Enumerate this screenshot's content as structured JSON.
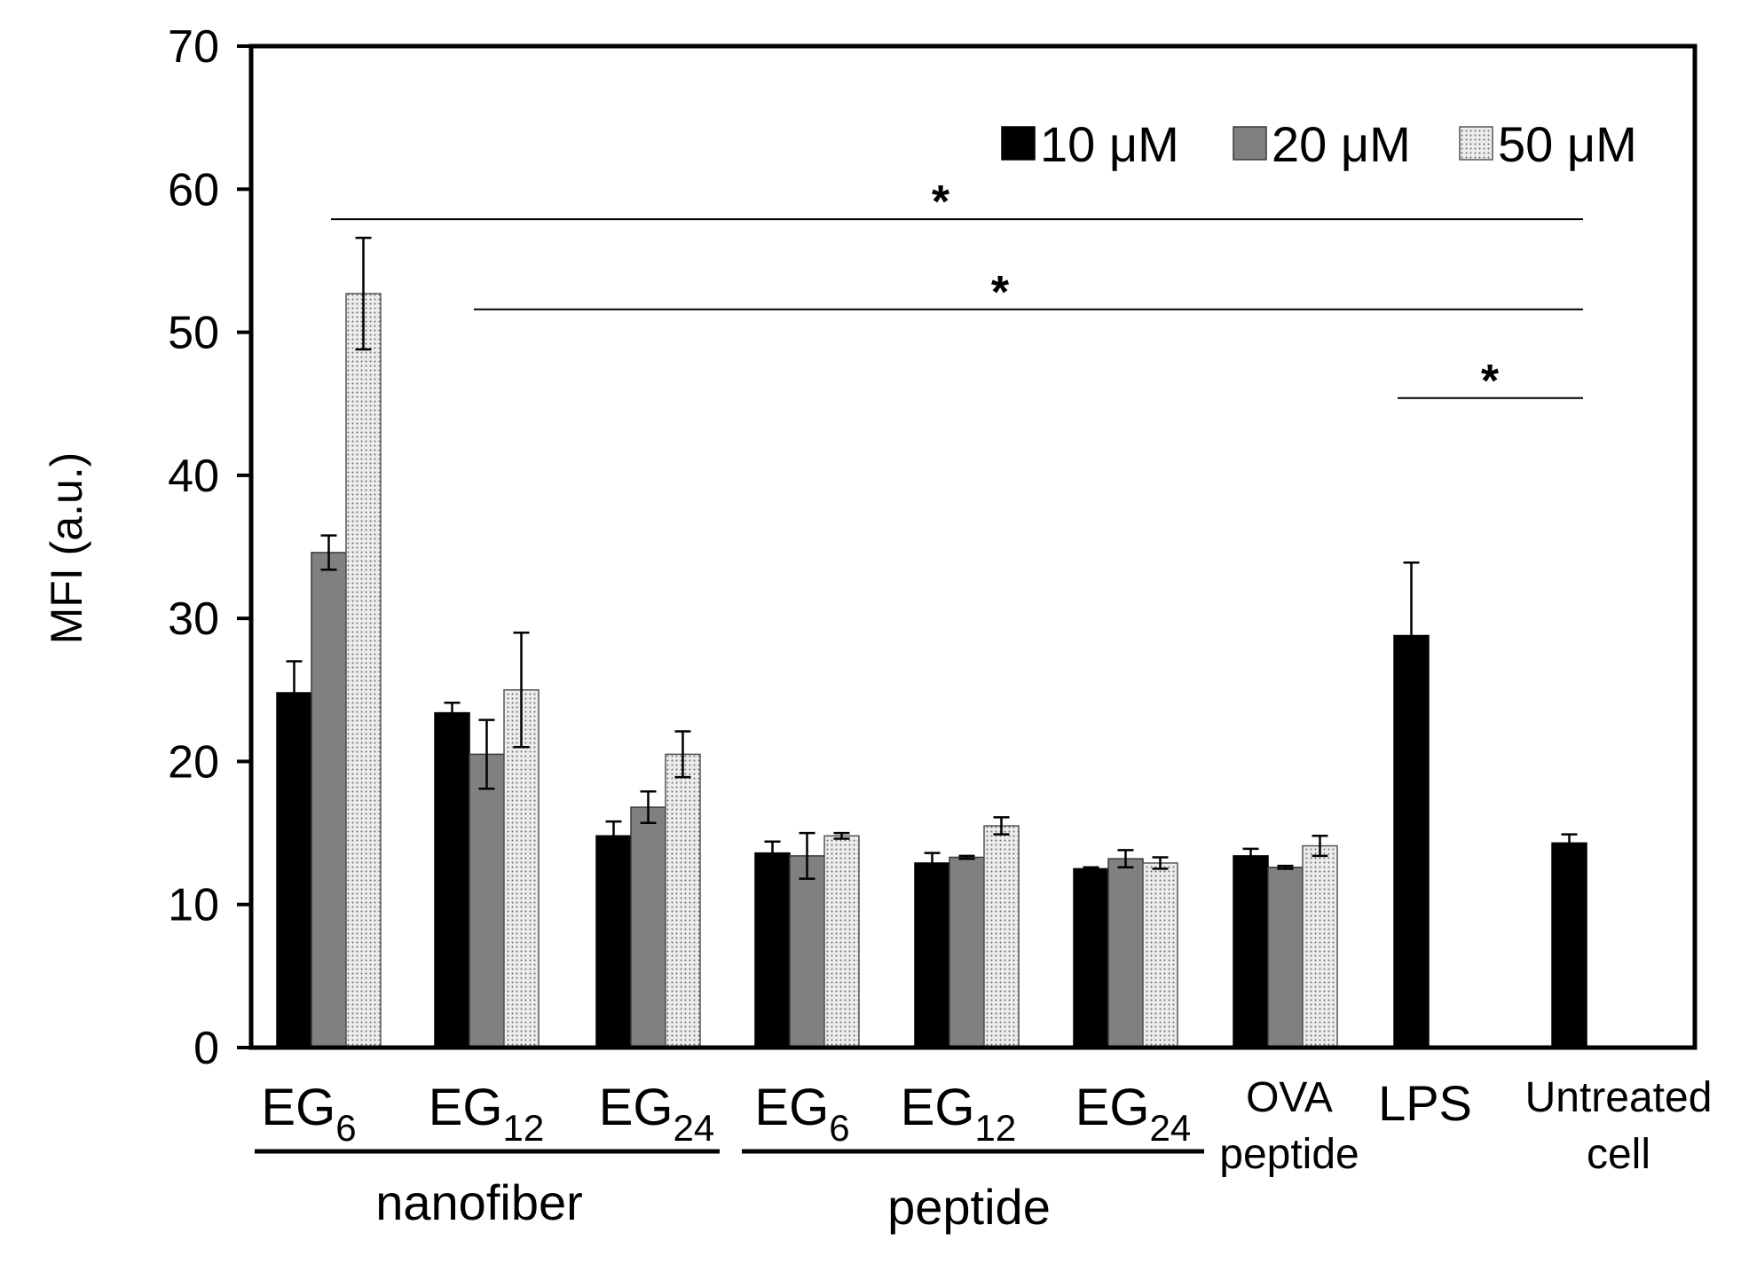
{
  "chart_data": {
    "type": "bar",
    "title": "",
    "xlabel": "",
    "ylabel": "MFI (a.u.)",
    "ylim": [
      0,
      70
    ],
    "yticks": [
      0,
      10,
      20,
      30,
      40,
      50,
      60,
      70
    ],
    "legend_position": "top-right",
    "series": [
      {
        "name": "10 μM",
        "color": "#000000",
        "pattern": "solid-black"
      },
      {
        "name": "20 μM",
        "color": "#808080",
        "pattern": "solid-gray"
      },
      {
        "name": "50 μM",
        "color": "#ececec",
        "pattern": "dotted"
      }
    ],
    "groups": [
      {
        "label_main": "EG",
        "label_sub": "6",
        "label_line2": "",
        "bars": [
          {
            "series": 0,
            "value": 24.8,
            "error": 2.2
          },
          {
            "series": 1,
            "value": 34.6,
            "error": 1.2
          },
          {
            "series": 2,
            "value": 52.7,
            "error": 3.9
          }
        ]
      },
      {
        "label_main": "EG",
        "label_sub": "12",
        "label_line2": "",
        "bars": [
          {
            "series": 0,
            "value": 23.4,
            "error": 0.7
          },
          {
            "series": 1,
            "value": 20.5,
            "error": 2.4
          },
          {
            "series": 2,
            "value": 25.0,
            "error": 4.0
          }
        ]
      },
      {
        "label_main": "EG",
        "label_sub": "24",
        "label_line2": "",
        "bars": [
          {
            "series": 0,
            "value": 14.8,
            "error": 1.0
          },
          {
            "series": 1,
            "value": 16.8,
            "error": 1.1
          },
          {
            "series": 2,
            "value": 20.5,
            "error": 1.6
          }
        ]
      },
      {
        "label_main": "EG",
        "label_sub": "6",
        "label_line2": "",
        "bars": [
          {
            "series": 0,
            "value": 13.6,
            "error": 0.8
          },
          {
            "series": 1,
            "value": 13.4,
            "error": 1.6
          },
          {
            "series": 2,
            "value": 14.8,
            "error": 0.2
          }
        ]
      },
      {
        "label_main": "EG",
        "label_sub": "12",
        "label_line2": "",
        "bars": [
          {
            "series": 0,
            "value": 12.9,
            "error": 0.7
          },
          {
            "series": 1,
            "value": 13.3,
            "error": 0.1
          },
          {
            "series": 2,
            "value": 15.5,
            "error": 0.6
          }
        ]
      },
      {
        "label_main": "EG",
        "label_sub": "24",
        "label_line2": "",
        "bars": [
          {
            "series": 0,
            "value": 12.5,
            "error": 0.1
          },
          {
            "series": 1,
            "value": 13.2,
            "error": 0.6
          },
          {
            "series": 2,
            "value": 12.9,
            "error": 0.4
          }
        ]
      },
      {
        "label_main": "OVA",
        "label_sub": "",
        "label_line2": "peptide",
        "bars": [
          {
            "series": 0,
            "value": 13.4,
            "error": 0.5
          },
          {
            "series": 1,
            "value": 12.6,
            "error": 0.1
          },
          {
            "series": 2,
            "value": 14.1,
            "error": 0.7
          }
        ]
      },
      {
        "label_main": "LPS",
        "label_sub": "",
        "label_line2": "",
        "bars": [
          {
            "series": 0,
            "value": 28.8,
            "error": 5.1
          }
        ]
      },
      {
        "label_main": "Untreated",
        "label_sub": "",
        "label_line2": "cell",
        "bars": [
          {
            "series": 0,
            "value": 14.3,
            "error": 0.6
          }
        ]
      }
    ],
    "category_brackets": [
      {
        "label": "nanofiber",
        "from_group": 0,
        "to_group": 2
      },
      {
        "label": "peptide",
        "from_group": 3,
        "to_group": 5
      }
    ],
    "significance": [
      {
        "label": "*",
        "from_group": 0,
        "to_group": 8,
        "y_value": 57.9
      },
      {
        "label": "*",
        "from_group": 1,
        "to_group": 8,
        "y_value": 51.6
      },
      {
        "label": "*",
        "from_group": 7,
        "to_group": 8,
        "y_value": 45.4
      }
    ]
  }
}
